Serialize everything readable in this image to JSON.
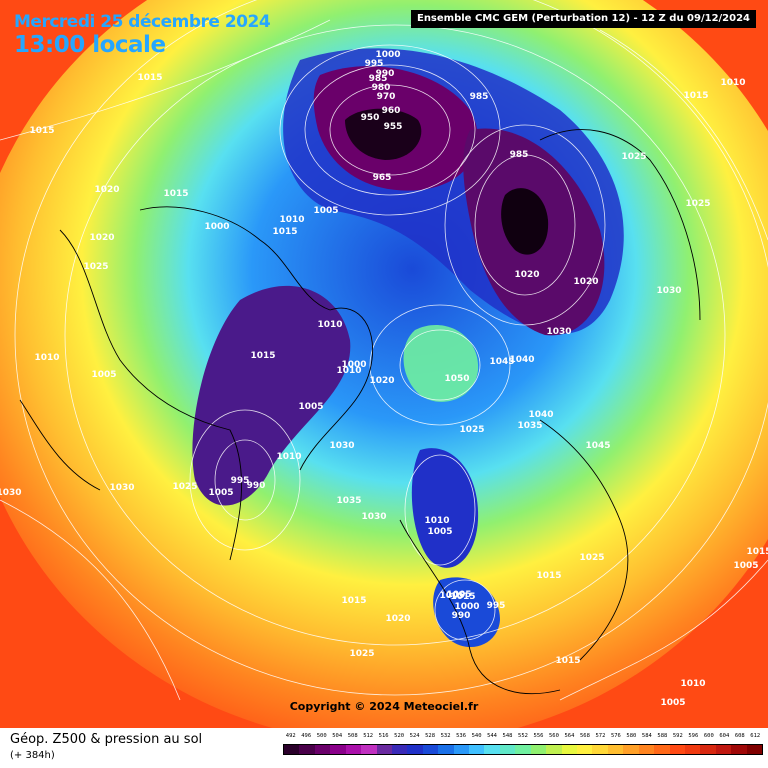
{
  "header": {
    "date": "Mercredi 25 décembre 2024",
    "time": "13:00 locale",
    "model": "Ensemble CMC GEM  (Perturbation 12)  -  12 Z du 09/12/2024"
  },
  "copyright": "Copyright © 2024 Meteociel.fr",
  "footer": {
    "title": "Géop. Z500 & pression au sol",
    "subtitle": "(+ 384h)"
  },
  "legend": {
    "values": [
      "492",
      "496",
      "500",
      "504",
      "508",
      "512",
      "516",
      "520",
      "524",
      "528",
      "532",
      "536",
      "540",
      "544",
      "548",
      "552",
      "556",
      "560",
      "564",
      "568",
      "572",
      "576",
      "580",
      "584",
      "588",
      "592",
      "596",
      "600",
      "604",
      "608",
      "612"
    ],
    "colors": [
      "#2a002a",
      "#4a004a",
      "#6a006a",
      "#8a008a",
      "#aa10aa",
      "#c030c0",
      "#6a2aa0",
      "#3a2ab8",
      "#2030c8",
      "#1a4ad8",
      "#1a70e8",
      "#2a98f8",
      "#40c0ff",
      "#58e0f0",
      "#60e8c8",
      "#70f0a0",
      "#90f070",
      "#c0f050",
      "#e8f840",
      "#fff040",
      "#ffd838",
      "#ffbe30",
      "#ffa028",
      "#ff8420",
      "#ff6818",
      "#ff4a14",
      "#f03a10",
      "#d82810",
      "#c01810",
      "#a00808",
      "#800000"
    ]
  },
  "pressure_labels": [
    "1000",
    "995",
    "990",
    "985",
    "980",
    "970",
    "950",
    "960",
    "955",
    "965",
    "985",
    "985",
    "1005",
    "1010",
    "1015",
    "1000",
    "1015",
    "1020",
    "1015",
    "1020",
    "1025",
    "1020",
    "1030",
    "1020",
    "1025",
    "1025",
    "1015",
    "1010",
    "1030",
    "1010",
    "1015",
    "1010",
    "1020",
    "1050",
    "1045",
    "1040",
    "1005",
    "1000",
    "1005",
    "1040",
    "1035",
    "1025",
    "1045",
    "1030",
    "1010",
    "995",
    "1005",
    "990",
    "1025",
    "1030",
    "1035",
    "1030",
    "1005",
    "1010",
    "1005",
    "1025",
    "1015",
    "1015",
    "1015",
    "1000",
    "995",
    "1005",
    "990",
    "1020",
    "1025",
    "1015",
    "1010",
    "1005",
    "1015",
    "1030",
    "1010",
    "1005",
    "1015"
  ]
}
